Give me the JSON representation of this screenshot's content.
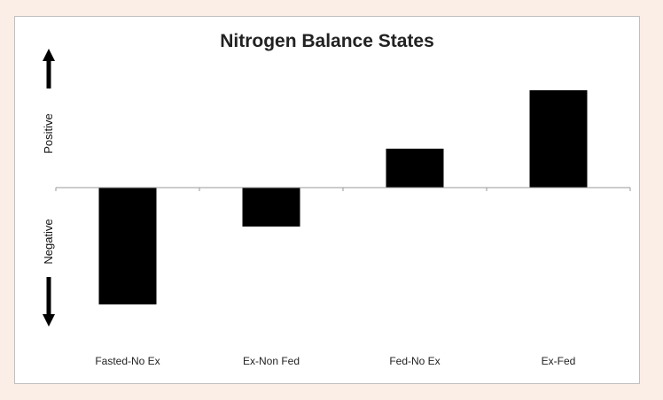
{
  "chart_data": {
    "type": "bar",
    "title": "Nitrogen Balance States",
    "categories": [
      "Fasted-No Ex",
      "Ex-Non Fed",
      "Fed-No Ex",
      "Ex-Fed"
    ],
    "values": [
      -3.0,
      -1.0,
      1.0,
      2.5
    ],
    "ylim": [
      -3.5,
      3.5
    ],
    "y_direction_labels": {
      "positive": "Positive",
      "negative": "Negative"
    },
    "grid": false,
    "legend": "none",
    "bar_color": "#000000"
  }
}
